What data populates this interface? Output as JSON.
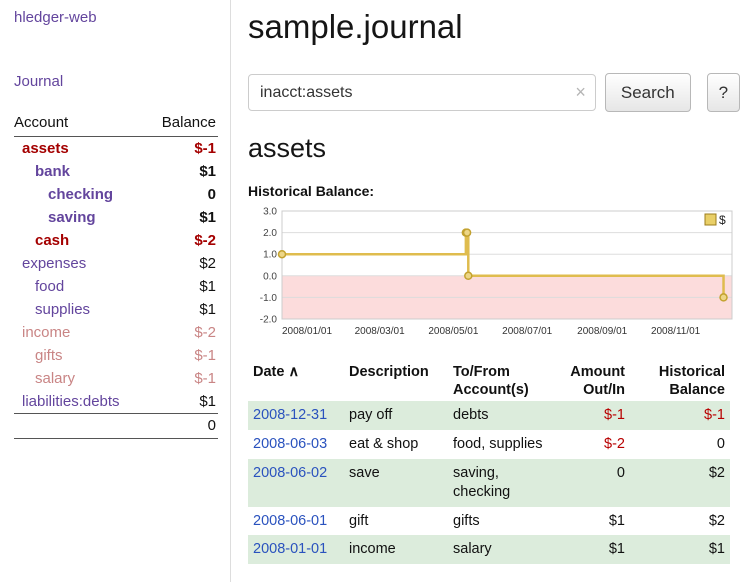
{
  "colors": {
    "purple": "#63459d",
    "dark_red": "#a40000",
    "faded_red": "#c98585",
    "table_red": "#b80000",
    "date_blue": "#2a52be",
    "row_green": "#dcecdc"
  },
  "sidebar": {
    "app_title": "hledger-web",
    "journal_link": "Journal",
    "header": {
      "account": "Account",
      "balance": "Balance"
    },
    "accounts": [
      {
        "name": "assets",
        "balance": "$-1",
        "indent": 0,
        "bold": true,
        "neg": true
      },
      {
        "name": "bank",
        "balance": "$1",
        "indent": 1,
        "bold": true,
        "neg": false
      },
      {
        "name": "checking",
        "balance": "0",
        "indent": 2,
        "bold": true,
        "neg": false
      },
      {
        "name": "saving",
        "balance": "$1",
        "indent": 2,
        "bold": true,
        "neg": false
      },
      {
        "name": "cash",
        "balance": "$-2",
        "indent": 1,
        "bold": true,
        "neg": true
      },
      {
        "name": "expenses",
        "balance": "$2",
        "indent": 0,
        "bold": false,
        "neg": false
      },
      {
        "name": "food",
        "balance": "$1",
        "indent": 1,
        "bold": false,
        "neg": false
      },
      {
        "name": "supplies",
        "balance": "$1",
        "indent": 1,
        "bold": false,
        "neg": false
      },
      {
        "name": "income",
        "balance": "$-2",
        "indent": 0,
        "bold": false,
        "neg": true
      },
      {
        "name": "gifts",
        "balance": "$-1",
        "indent": 1,
        "bold": false,
        "neg": true
      },
      {
        "name": "salary",
        "balance": "$-1",
        "indent": 1,
        "bold": false,
        "neg": true
      },
      {
        "name": "liabilities:debts",
        "balance": "$1",
        "indent": 0,
        "bold": false,
        "neg": false
      }
    ],
    "total": "0"
  },
  "main": {
    "title": "sample.journal",
    "search": {
      "value": "inacct:assets",
      "clear_icon": "×",
      "button_label": "Search",
      "help_label": "?"
    },
    "account_title": "assets",
    "chart_label": "Historical Balance:"
  },
  "chart_data": {
    "type": "line",
    "step": true,
    "title": "Historical Balance",
    "legend": [
      {
        "label": "$",
        "color": "#e9cf67"
      }
    ],
    "ylim": [
      -2,
      3
    ],
    "y_ticks": [
      3.0,
      2.0,
      1.0,
      0.0,
      -1.0,
      -2.0
    ],
    "xlim_days": [
      0,
      372
    ],
    "x_ticks": [
      {
        "day": 0,
        "label": "2008/01/01"
      },
      {
        "day": 60,
        "label": "2008/03/01"
      },
      {
        "day": 121,
        "label": "2008/05/01"
      },
      {
        "day": 182,
        "label": "2008/07/01"
      },
      {
        "day": 244,
        "label": "2008/09/01"
      },
      {
        "day": 305,
        "label": "2008/11/01"
      }
    ],
    "points": [
      {
        "date": "2008-01-01",
        "day": 0,
        "value": 1
      },
      {
        "date": "2008-06-01",
        "day": 152,
        "value": 2
      },
      {
        "date": "2008-06-02",
        "day": 153,
        "value": 2
      },
      {
        "date": "2008-06-03",
        "day": 154,
        "value": 0
      },
      {
        "date": "2008-12-31",
        "day": 365,
        "value": -1
      }
    ],
    "line_color": "#dfbc4e",
    "point_fill": "#edd687",
    "point_stroke": "#c3a230",
    "negative_fill": "#fcdcdc",
    "grid_color": "#dddddd",
    "border_color": "#cccccc"
  },
  "register": {
    "columns": [
      {
        "label": "Date",
        "sort_icon": "∧",
        "align": "left"
      },
      {
        "label": "Description",
        "align": "left"
      },
      {
        "label": "To/From Account(s)",
        "align": "left"
      },
      {
        "label": "Amount Out/In",
        "align": "right"
      },
      {
        "label": "Historical Balance",
        "align": "right"
      }
    ],
    "rows": [
      {
        "date": "2008-12-31",
        "description": "pay off",
        "accounts": "debts",
        "amount": "$-1",
        "balance": "$-1",
        "amount_neg": true,
        "balance_neg": true,
        "shaded": true
      },
      {
        "date": "2008-06-03",
        "description": "eat & shop",
        "accounts": "food, supplies",
        "amount": "$-2",
        "balance": "0",
        "amount_neg": true,
        "balance_neg": false,
        "shaded": false
      },
      {
        "date": "2008-06-02",
        "description": "save",
        "accounts": "saving, checking",
        "amount": "0",
        "balance": "$2",
        "amount_neg": false,
        "balance_neg": false,
        "shaded": true
      },
      {
        "date": "2008-06-01",
        "description": "gift",
        "accounts": "gifts",
        "amount": "$1",
        "balance": "$2",
        "amount_neg": false,
        "balance_neg": false,
        "shaded": false
      },
      {
        "date": "2008-01-01",
        "description": "income",
        "accounts": "salary",
        "amount": "$1",
        "balance": "$1",
        "amount_neg": false,
        "balance_neg": false,
        "shaded": true
      }
    ]
  }
}
